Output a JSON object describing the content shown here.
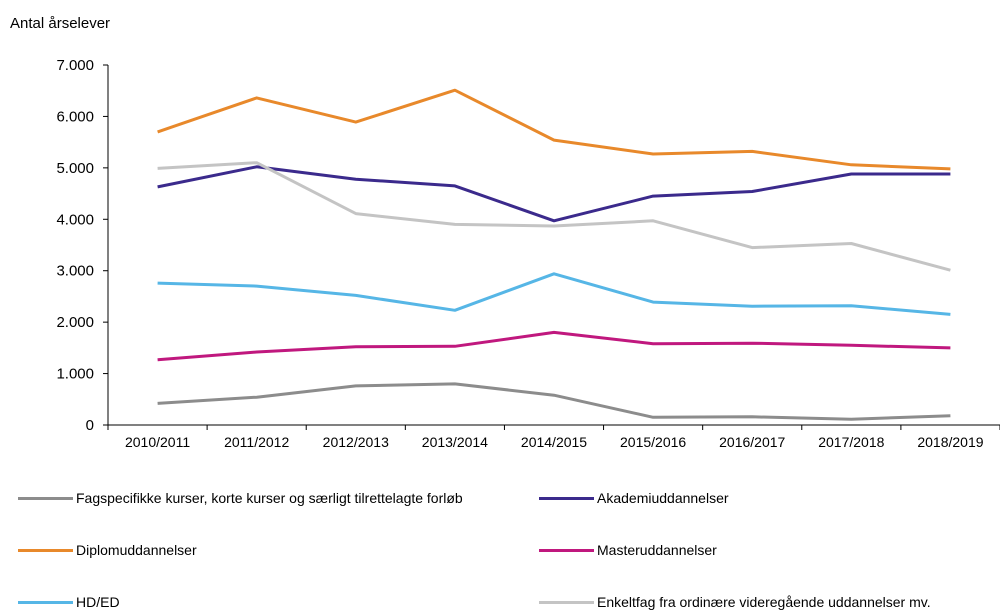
{
  "chart_data": {
    "type": "line",
    "ylabel": "Antal årselever",
    "xlabel": "",
    "title": "",
    "ylim": [
      0,
      7000
    ],
    "yticks": [
      0,
      1000,
      2000,
      3000,
      4000,
      5000,
      6000,
      7000
    ],
    "ytick_labels": [
      "0",
      "1.000",
      "2.000",
      "3.000",
      "4.000",
      "5.000",
      "6.000",
      "7.000"
    ],
    "categories": [
      "2010/2011",
      "2011/2012",
      "2012/2013",
      "2013/2014",
      "2014/2015",
      "2015/2016",
      "2016/2017",
      "2017/2018",
      "2018/2019"
    ],
    "grid": false,
    "legend_position": "bottom",
    "series": [
      {
        "name": "Fagspecifikke kurser, korte kurser og særligt tilrettelagte forløb",
        "color": "#8c8c8c",
        "values": [
          420,
          540,
          760,
          800,
          580,
          150,
          160,
          110,
          180
        ]
      },
      {
        "name": "Akademiuddannelser",
        "color": "#3b2a8c",
        "values": [
          4630,
          5020,
          4780,
          4650,
          3970,
          4450,
          4540,
          4880,
          4880
        ]
      },
      {
        "name": "Diplomuddannelser",
        "color": "#e8892b",
        "values": [
          5700,
          6360,
          5890,
          6510,
          5540,
          5270,
          5320,
          5060,
          4980
        ]
      },
      {
        "name": "Masteruddannelser",
        "color": "#c0187e",
        "values": [
          1270,
          1420,
          1520,
          1530,
          1800,
          1580,
          1590,
          1550,
          1500
        ]
      },
      {
        "name": "HD/ED",
        "color": "#56b6e6",
        "values": [
          2760,
          2700,
          2520,
          2230,
          2940,
          2390,
          2310,
          2320,
          2150
        ]
      },
      {
        "name": "Enkeltfag fra ordinære videregående uddannelser mv.",
        "color": "#c4c4c4",
        "values": [
          4990,
          5100,
          4110,
          3900,
          3870,
          3970,
          3450,
          3530,
          3010
        ]
      }
    ]
  }
}
